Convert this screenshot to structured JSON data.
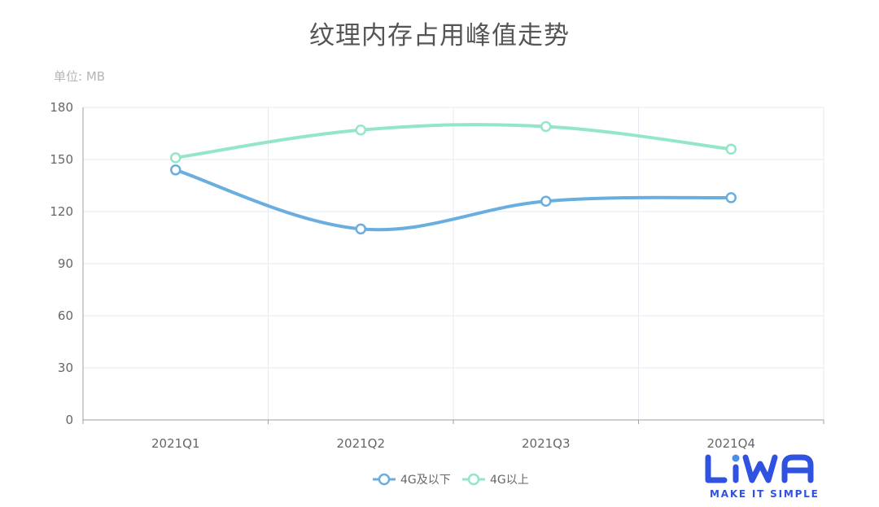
{
  "chart_data": {
    "type": "line",
    "smooth": true,
    "title": "纹理内存占用峰值走势",
    "unit_label": "单位: MB",
    "categories": [
      "2021Q1",
      "2021Q2",
      "2021Q3",
      "2021Q4"
    ],
    "series": [
      {
        "name": "4G及以下",
        "values": [
          144,
          110,
          126,
          128
        ],
        "color": "#6aaee0"
      },
      {
        "name": "4G以上",
        "values": [
          151,
          167,
          169,
          156
        ],
        "color": "#93e6c6"
      }
    ],
    "ylim": [
      0,
      180
    ],
    "yticks": [
      0,
      30,
      60,
      90,
      120,
      150,
      180
    ],
    "grid": true,
    "legend_position": "bottom-center"
  },
  "logo": {
    "brand": "LiWA",
    "tagline": "MAKE IT SIMPLE",
    "color": "#2f52e0"
  }
}
